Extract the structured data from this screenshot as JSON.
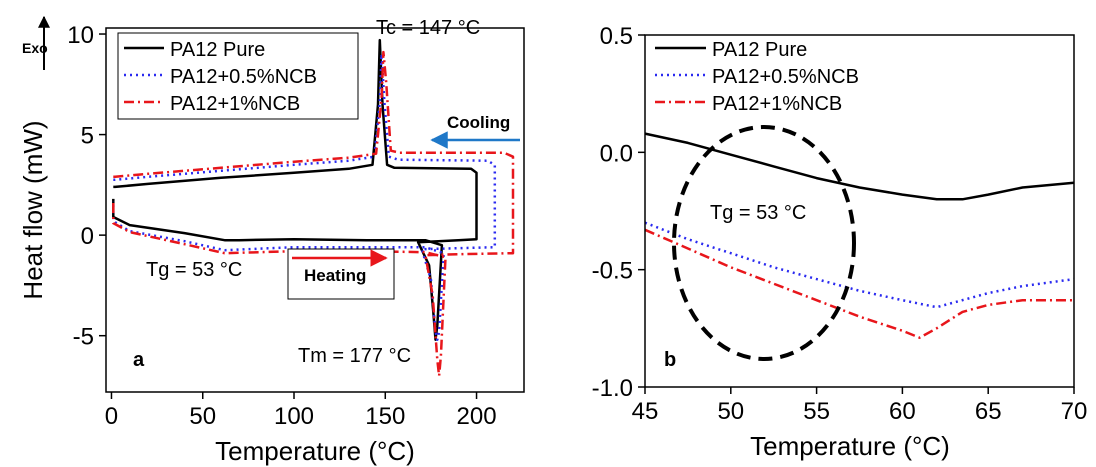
{
  "chart_data": [
    {
      "type": "line",
      "panel_label": "a",
      "xlabel": "Temperature (°C)",
      "ylabel": "Heat flow (mW)",
      "xlim": [
        -3,
        226
      ],
      "ylim": [
        -7.8,
        10.3
      ],
      "xticks": [
        0,
        50,
        100,
        150,
        200
      ],
      "yticks": [
        -5,
        0,
        5,
        10
      ],
      "xtick_labels": [
        "0",
        "50",
        "100",
        "150",
        "200"
      ],
      "ytick_labels": [
        "-5",
        "0",
        "5",
        "10"
      ],
      "grid": false,
      "legend_position": "top-left",
      "series": [
        {
          "name": "PA12 Pure",
          "color": "#000000",
          "dash": "solid",
          "x": [
            1,
            2,
            20,
            60,
            100,
            130,
            143,
            146,
            147,
            148.5,
            151,
            155,
            197,
            200,
            200,
            190,
            168,
            174,
            176.5,
            177.5,
            178.5,
            181,
            172,
            140,
            100,
            70,
            62,
            40,
            10,
            1,
            1
          ],
          "y": [
            2.4,
            2.4,
            2.55,
            2.85,
            3.1,
            3.3,
            3.5,
            6.5,
            9.7,
            6.5,
            3.5,
            3.35,
            3.3,
            3.1,
            -0.2,
            -0.25,
            -0.35,
            -1.5,
            -4.0,
            -5.2,
            -4.5,
            -0.5,
            -0.25,
            -0.25,
            -0.2,
            -0.25,
            -0.25,
            0.1,
            0.5,
            0.9,
            1.8
          ]
        },
        {
          "name": "PA12+0.5%NCB",
          "color": "#2a2af0",
          "dash": "dot",
          "x": [
            1,
            2,
            20,
            60,
            100,
            130,
            144,
            147,
            148,
            149.5,
            152,
            157,
            206,
            210,
            210,
            190,
            170,
            175,
            177.5,
            178.5,
            179.5,
            182,
            172,
            140,
            100,
            62,
            40,
            10,
            1,
            1
          ],
          "y": [
            2.75,
            2.75,
            2.9,
            3.2,
            3.5,
            3.7,
            3.9,
            6.6,
            9.0,
            6.6,
            3.9,
            3.75,
            3.7,
            3.5,
            -0.6,
            -0.65,
            -0.7,
            -2.2,
            -4.8,
            -5.2,
            -4.8,
            -0.9,
            -0.6,
            -0.6,
            -0.6,
            -0.75,
            -0.3,
            0.2,
            0.7,
            1.7
          ]
        },
        {
          "name": "PA12+1%NCB",
          "color": "#e8161b",
          "dash": "dashdot",
          "x": [
            1,
            2,
            20,
            60,
            100,
            130,
            145,
            148,
            149,
            150.5,
            153,
            158,
            215,
            220,
            220,
            190,
            172,
            176,
            178.5,
            179.5,
            180.5,
            183,
            172,
            140,
            100,
            62,
            40,
            10,
            1,
            1
          ],
          "y": [
            2.9,
            2.9,
            3.05,
            3.35,
            3.65,
            3.85,
            4.05,
            6.8,
            9.1,
            7.6,
            4.2,
            4.1,
            4.1,
            3.9,
            -0.9,
            -0.95,
            -1.0,
            -3.0,
            -6.2,
            -7.0,
            -6.0,
            -1.1,
            -0.85,
            -0.8,
            -0.8,
            -0.9,
            -0.45,
            0.15,
            0.6,
            1.6
          ]
        }
      ],
      "annotations": {
        "tc": "Tc = 147 °C",
        "tm": "Tm = 177 °C",
        "tg": "Tg = 53 °C",
        "cooling": "Cooling",
        "heating": "Heating",
        "exo": "Exo"
      },
      "arrow_colors": {
        "cooling": "#1f78c8",
        "heating": "#e8161b"
      }
    },
    {
      "type": "line",
      "panel_label": "b",
      "xlabel": "Temperature (°C)",
      "ylabel": "",
      "xlim": [
        45,
        70
      ],
      "ylim": [
        -1.0,
        0.5
      ],
      "xticks": [
        45,
        50,
        55,
        60,
        65,
        70
      ],
      "yticks": [
        -1.0,
        -0.5,
        0.0,
        0.5
      ],
      "xtick_labels": [
        "45",
        "50",
        "55",
        "60",
        "65",
        "70"
      ],
      "ytick_labels": [
        "-1.0",
        "-0.5",
        "0.0",
        "0.5"
      ],
      "grid": false,
      "legend_position": "top-left",
      "series": [
        {
          "name": "PA12 Pure",
          "color": "#000000",
          "dash": "solid",
          "x": [
            45,
            47.5,
            50,
            52.5,
            55,
            57.5,
            60,
            62,
            63.5,
            65,
            67,
            70
          ],
          "y": [
            0.08,
            0.04,
            -0.01,
            -0.06,
            -0.11,
            -0.15,
            -0.18,
            -0.2,
            -0.2,
            -0.18,
            -0.15,
            -0.13
          ]
        },
        {
          "name": "PA12+0.5%NCB",
          "color": "#2a2af0",
          "dash": "dot",
          "x": [
            45,
            47.5,
            50,
            52.5,
            55,
            57.5,
            60,
            62,
            63,
            65,
            67,
            70
          ],
          "y": [
            -0.3,
            -0.37,
            -0.43,
            -0.49,
            -0.54,
            -0.59,
            -0.63,
            -0.66,
            -0.64,
            -0.6,
            -0.57,
            -0.54
          ]
        },
        {
          "name": "PA12+1%NCB",
          "color": "#e8161b",
          "dash": "dashdot",
          "x": [
            45,
            47.5,
            50,
            52.5,
            55,
            57.5,
            60,
            61,
            62,
            63.5,
            65,
            67,
            70
          ],
          "y": [
            -0.33,
            -0.41,
            -0.49,
            -0.56,
            -0.63,
            -0.7,
            -0.76,
            -0.79,
            -0.75,
            -0.68,
            -0.65,
            -0.63,
            -0.63
          ]
        }
      ],
      "annotations": {
        "tg": "Tg = 53 °C"
      }
    }
  ]
}
